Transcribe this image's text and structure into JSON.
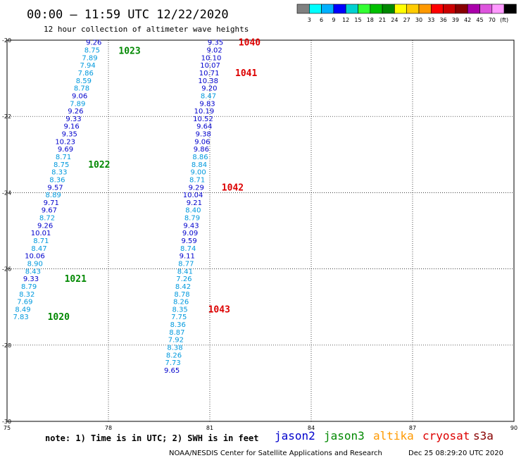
{
  "header": {
    "title": "00:00 – 11:59 UTC 12/22/2020",
    "subtitle": "12 hour collection of altimeter wave heights"
  },
  "color_scale": {
    "colors": [
      "#808080",
      "#00ffff",
      "#00b0ff",
      "#0000ff",
      "#00d0d0",
      "#33ff33",
      "#00c000",
      "#008800",
      "#ffff00",
      "#ffcc00",
      "#ff9900",
      "#ff0000",
      "#cc0000",
      "#880000",
      "#aa00aa",
      "#dd55dd",
      "#ff99ff",
      "#000000"
    ],
    "labels": [
      "3",
      "6",
      "9",
      "12",
      "15",
      "18",
      "21",
      "24",
      "27",
      "30",
      "33",
      "36",
      "39",
      "42",
      "45",
      "70",
      "(ft)"
    ]
  },
  "footer": {
    "note": "note:  1) Time is in UTC; 2) SWH is in feet",
    "credit": "NOAA/NESDIS Center for Satellite Applications and Research",
    "timestamp": "Dec 25 08:29:20 UTC 2020"
  },
  "legend": [
    {
      "name": "jason2",
      "color": "#0000cc"
    },
    {
      "name": "jason3",
      "color": "#008800"
    },
    {
      "name": "altika",
      "color": "#ff9900"
    },
    {
      "name": "cryosat",
      "color": "#dd0000"
    },
    {
      "name": "s3a",
      "color": "#880000"
    }
  ],
  "chart_data": {
    "type": "scatter",
    "xlim": [
      75,
      90
    ],
    "ylim": [
      -30,
      -20
    ],
    "x_ticks": [
      75,
      78,
      81,
      84,
      87,
      90
    ],
    "y_ticks": [
      -20,
      -22,
      -24,
      -26,
      -28,
      -30
    ],
    "grid": true,
    "colors": {
      "light": "#0099dd",
      "dark": "#0000cc",
      "jason3": "#008800",
      "cryosat": "#dd0000"
    },
    "series": [
      {
        "name": "jason3",
        "satellite": "jason3",
        "label_color": "#008800",
        "points": [
          {
            "x": 77.8,
            "y": -20.05,
            "v": "9.26",
            "c": "dark"
          },
          {
            "x": 77.75,
            "y": -20.25,
            "v": "8.75",
            "c": "light"
          },
          {
            "x": 77.68,
            "y": -20.45,
            "v": "7.89",
            "c": "light"
          },
          {
            "x": 77.62,
            "y": -20.65,
            "v": "7.94",
            "c": "light"
          },
          {
            "x": 77.56,
            "y": -20.85,
            "v": "7.86",
            "c": "light"
          },
          {
            "x": 77.5,
            "y": -21.05,
            "v": "8.59",
            "c": "light"
          },
          {
            "x": 77.44,
            "y": -21.25,
            "v": "8.78",
            "c": "light"
          },
          {
            "x": 77.38,
            "y": -21.45,
            "v": "9.06",
            "c": "dark"
          },
          {
            "x": 77.32,
            "y": -21.65,
            "v": "7.89",
            "c": "light"
          },
          {
            "x": 77.26,
            "y": -21.85,
            "v": "9.26",
            "c": "dark"
          },
          {
            "x": 77.2,
            "y": -22.05,
            "v": "9.33",
            "c": "dark"
          },
          {
            "x": 77.14,
            "y": -22.25,
            "v": "9.16",
            "c": "dark"
          },
          {
            "x": 77.08,
            "y": -22.45,
            "v": "9.35",
            "c": "dark"
          },
          {
            "x": 77.02,
            "y": -22.65,
            "v": "10.23",
            "c": "dark"
          },
          {
            "x": 76.96,
            "y": -22.85,
            "v": "9.69",
            "c": "dark"
          },
          {
            "x": 76.9,
            "y": -23.05,
            "v": "8.71",
            "c": "light"
          },
          {
            "x": 76.84,
            "y": -23.25,
            "v": "8.75",
            "c": "light"
          },
          {
            "x": 76.78,
            "y": -23.45,
            "v": "8.33",
            "c": "light"
          },
          {
            "x": 76.72,
            "y": -23.65,
            "v": "8.36",
            "c": "light"
          },
          {
            "x": 76.66,
            "y": -23.85,
            "v": "9.57",
            "c": "dark"
          },
          {
            "x": 76.6,
            "y": -24.05,
            "v": "8.89",
            "c": "light"
          },
          {
            "x": 76.54,
            "y": -24.25,
            "v": "9.71",
            "c": "dark"
          },
          {
            "x": 76.48,
            "y": -24.45,
            "v": "9.67",
            "c": "dark"
          },
          {
            "x": 76.42,
            "y": -24.65,
            "v": "8.72",
            "c": "light"
          },
          {
            "x": 76.36,
            "y": -24.85,
            "v": "9.26",
            "c": "dark"
          },
          {
            "x": 76.3,
            "y": -25.05,
            "v": "10.01",
            "c": "dark"
          },
          {
            "x": 76.24,
            "y": -25.25,
            "v": "8.71",
            "c": "light"
          },
          {
            "x": 76.18,
            "y": -25.45,
            "v": "8.47",
            "c": "light"
          },
          {
            "x": 76.12,
            "y": -25.65,
            "v": "10.06",
            "c": "dark"
          },
          {
            "x": 76.06,
            "y": -25.85,
            "v": "8.90",
            "c": "light"
          },
          {
            "x": 76.0,
            "y": -26.05,
            "v": "8.43",
            "c": "light"
          },
          {
            "x": 75.94,
            "y": -26.25,
            "v": "9.33",
            "c": "dark"
          },
          {
            "x": 75.88,
            "y": -26.45,
            "v": "8.79",
            "c": "light"
          },
          {
            "x": 75.82,
            "y": -26.65,
            "v": "8.32",
            "c": "light"
          },
          {
            "x": 75.76,
            "y": -26.85,
            "v": "7.69",
            "c": "light"
          },
          {
            "x": 75.7,
            "y": -27.05,
            "v": "8.49",
            "c": "light"
          },
          {
            "x": 75.64,
            "y": -27.25,
            "v": "7.83",
            "c": "light"
          }
        ],
        "pass_labels": [
          {
            "text": "1023",
            "x": 78.3,
            "y": -20.27
          },
          {
            "text": "1022",
            "x": 77.4,
            "y": -23.25
          },
          {
            "text": "1021",
            "x": 76.7,
            "y": -26.25
          },
          {
            "text": "1020",
            "x": 76.2,
            "y": -27.25
          }
        ]
      },
      {
        "name": "cryosat",
        "satellite": "cryosat",
        "label_color": "#dd0000",
        "points": [
          {
            "x": 81.4,
            "y": -20.05,
            "v": "9.35",
            "c": "dark"
          },
          {
            "x": 81.37,
            "y": -20.25,
            "v": "9.02",
            "c": "dark"
          },
          {
            "x": 81.34,
            "y": -20.45,
            "v": "10.10",
            "c": "dark"
          },
          {
            "x": 81.31,
            "y": -20.65,
            "v": "10.07",
            "c": "dark"
          },
          {
            "x": 81.28,
            "y": -20.85,
            "v": "10.71",
            "c": "dark"
          },
          {
            "x": 81.25,
            "y": -21.05,
            "v": "10.38",
            "c": "dark"
          },
          {
            "x": 81.22,
            "y": -21.25,
            "v": "9.20",
            "c": "dark"
          },
          {
            "x": 81.19,
            "y": -21.45,
            "v": "8.47",
            "c": "light"
          },
          {
            "x": 81.16,
            "y": -21.65,
            "v": "9.83",
            "c": "dark"
          },
          {
            "x": 81.13,
            "y": -21.85,
            "v": "10.19",
            "c": "dark"
          },
          {
            "x": 81.1,
            "y": -22.05,
            "v": "10.52",
            "c": "dark"
          },
          {
            "x": 81.07,
            "y": -22.25,
            "v": "9.64",
            "c": "dark"
          },
          {
            "x": 81.04,
            "y": -22.45,
            "v": "9.38",
            "c": "dark"
          },
          {
            "x": 81.01,
            "y": -22.65,
            "v": "9.06",
            "c": "dark"
          },
          {
            "x": 80.98,
            "y": -22.85,
            "v": "9.86",
            "c": "dark"
          },
          {
            "x": 80.95,
            "y": -23.05,
            "v": "8.86",
            "c": "light"
          },
          {
            "x": 80.92,
            "y": -23.25,
            "v": "8.84",
            "c": "light"
          },
          {
            "x": 80.89,
            "y": -23.45,
            "v": "9.00",
            "c": "light"
          },
          {
            "x": 80.86,
            "y": -23.65,
            "v": "8.71",
            "c": "light"
          },
          {
            "x": 80.83,
            "y": -23.85,
            "v": "9.29",
            "c": "dark"
          },
          {
            "x": 80.8,
            "y": -24.05,
            "v": "10.04",
            "c": "dark"
          },
          {
            "x": 80.77,
            "y": -24.25,
            "v": "9.21",
            "c": "dark"
          },
          {
            "x": 80.74,
            "y": -24.45,
            "v": "8.40",
            "c": "light"
          },
          {
            "x": 80.71,
            "y": -24.65,
            "v": "8.79",
            "c": "light"
          },
          {
            "x": 80.68,
            "y": -24.85,
            "v": "9.43",
            "c": "dark"
          },
          {
            "x": 80.65,
            "y": -25.05,
            "v": "9.09",
            "c": "dark"
          },
          {
            "x": 80.62,
            "y": -25.25,
            "v": "9.59",
            "c": "dark"
          },
          {
            "x": 80.59,
            "y": -25.45,
            "v": "8.74",
            "c": "light"
          },
          {
            "x": 80.56,
            "y": -25.65,
            "v": "9.11",
            "c": "dark"
          },
          {
            "x": 80.53,
            "y": -25.85,
            "v": "8.77",
            "c": "light"
          },
          {
            "x": 80.5,
            "y": -26.05,
            "v": "8.41",
            "c": "light"
          },
          {
            "x": 80.47,
            "y": -26.25,
            "v": "7.26",
            "c": "light"
          },
          {
            "x": 80.44,
            "y": -26.45,
            "v": "8.42",
            "c": "light"
          },
          {
            "x": 80.41,
            "y": -26.65,
            "v": "8.78",
            "c": "light"
          },
          {
            "x": 80.38,
            "y": -26.85,
            "v": "8.26",
            "c": "light"
          },
          {
            "x": 80.35,
            "y": -27.05,
            "v": "8.35",
            "c": "light"
          },
          {
            "x": 80.32,
            "y": -27.25,
            "v": "7.75",
            "c": "light"
          },
          {
            "x": 80.29,
            "y": -27.45,
            "v": "8.36",
            "c": "light"
          },
          {
            "x": 80.26,
            "y": -27.65,
            "v": "8.87",
            "c": "light"
          },
          {
            "x": 80.23,
            "y": -27.85,
            "v": "7.92",
            "c": "light"
          },
          {
            "x": 80.2,
            "y": -28.05,
            "v": "8.38",
            "c": "light"
          },
          {
            "x": 80.17,
            "y": -28.25,
            "v": "8.26",
            "c": "light"
          },
          {
            "x": 80.14,
            "y": -28.45,
            "v": "7.73",
            "c": "light"
          },
          {
            "x": 80.11,
            "y": -28.65,
            "v": "9.65",
            "c": "dark"
          }
        ],
        "pass_labels": [
          {
            "text": "1040",
            "x": 81.85,
            "y": -20.05
          },
          {
            "text": "1041",
            "x": 81.75,
            "y": -20.85
          },
          {
            "text": "1042",
            "x": 81.35,
            "y": -23.85
          },
          {
            "text": "1043",
            "x": 80.95,
            "y": -27.05
          }
        ]
      }
    ]
  }
}
